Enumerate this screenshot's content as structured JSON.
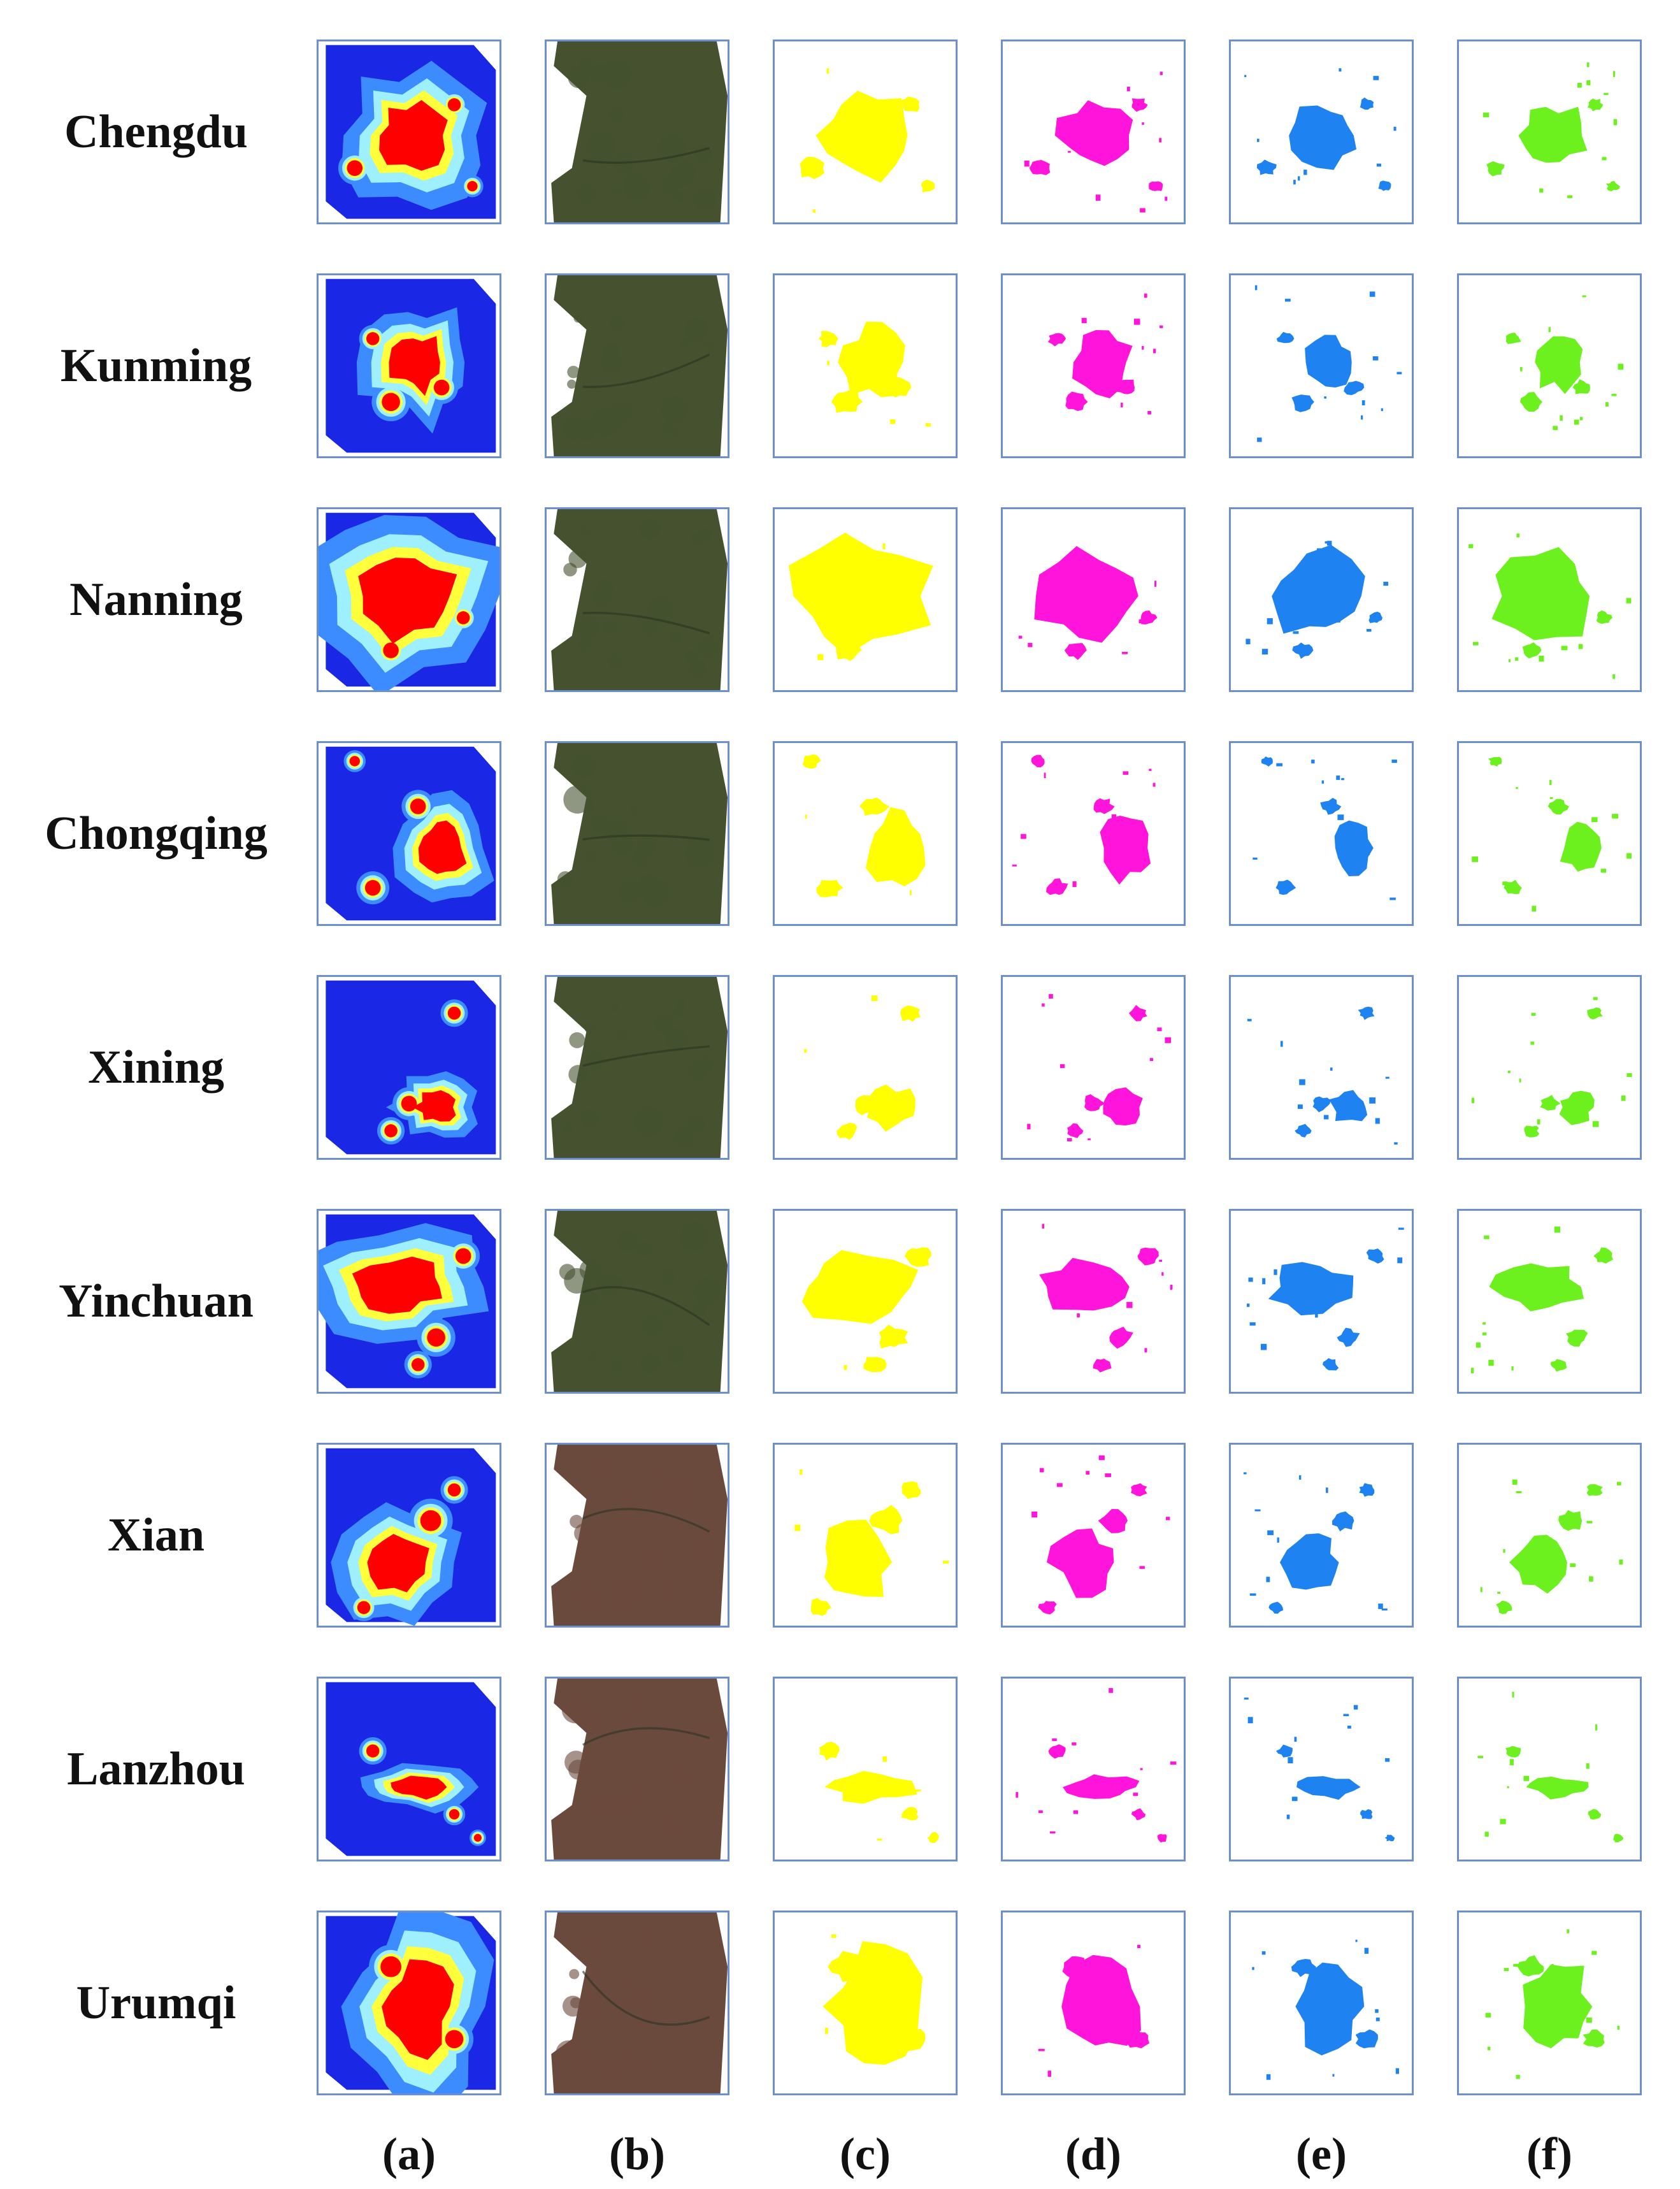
{
  "cities": [
    "Chengdu",
    "Kunming",
    "Nanning",
    "Chongqing",
    "Xining",
    "Yinchuan",
    "Xian",
    "Lanzhou",
    "Urumqi"
  ],
  "columns": [
    "(a)",
    "(b)",
    "(c)",
    "(d)",
    "(e)",
    "(f)"
  ],
  "panel_colors": {
    "c": "#ffff00",
    "d": "#ff14dc",
    "e": "#1e82f0",
    "f": "#6cf01e"
  },
  "heatmap_colors": [
    "#1a28e6",
    "#3c8cff",
    "#9ef0ff",
    "#ffff3c",
    "#ff0000"
  ],
  "satellite_colors": {
    "green": "#45512f",
    "brown": "#6b4a3e"
  }
}
